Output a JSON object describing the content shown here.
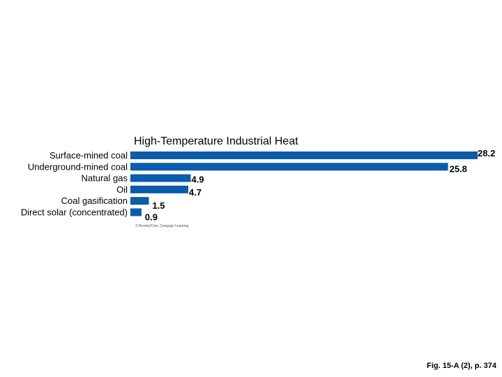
{
  "chart_data": {
    "type": "bar",
    "orientation": "horizontal",
    "title": "High-Temperature Industrial Heat",
    "categories": [
      "Surface-mined coal",
      "Underground-mined coal",
      "Natural gas",
      "Oil",
      "Coal gasification",
      "Direct solar (concentrated)"
    ],
    "values": [
      28.2,
      25.8,
      4.9,
      4.7,
      1.5,
      0.9
    ],
    "value_labels": [
      "28.2",
      "25.8",
      "4.9",
      "4.7",
      "1.5",
      "0.9"
    ],
    "xlim": [
      0,
      28.2
    ],
    "grid": false,
    "legend": "none",
    "bar_color": "#0a5cad",
    "credit": "© Brooks/Cole, Cengage Learning"
  },
  "caption": "Fig. 15-A (2), p. 374"
}
